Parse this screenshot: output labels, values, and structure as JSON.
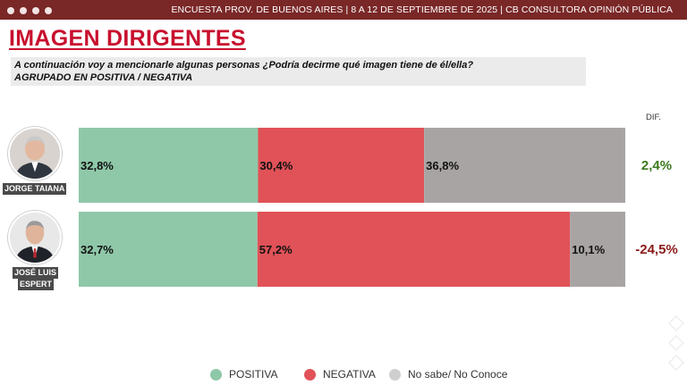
{
  "header": {
    "survey_title": "ENCUESTA PROV. DE BUENOS AIRES | 8 A 12 DE SEPTIEMBRE DE 2025 | CB CONSULTORA OPINIÓN PÚBLICA"
  },
  "title": "IMAGEN DIRIGENTES",
  "question": {
    "line1": "A continuación voy a mencionarle algunas personas  ¿Podría decirme qué imagen tiene de él/ella?",
    "line2": "AGRUPADO EN POSITIVA / NEGATIVA"
  },
  "dif_header": "DIF.",
  "colors": {
    "positiva": "#8fc8a8",
    "negativa": "#e05258",
    "nosabe": "#a9a4a4",
    "dif_positive": "#3c7a1f",
    "dif_negative": "#8b1a1a"
  },
  "chart_data": {
    "type": "bar",
    "orientation": "horizontal",
    "stacked": true,
    "categories": [
      "JORGE TAIANA",
      "JOSÉ LUIS ESPERT"
    ],
    "series": [
      {
        "name": "POSITIVA",
        "values": [
          32.8,
          32.7
        ],
        "labels": [
          "32,8%",
          "32,7%"
        ]
      },
      {
        "name": "NEGATIVA",
        "values": [
          30.4,
          57.2
        ],
        "labels": [
          "30,4%",
          "57,2%"
        ]
      },
      {
        "name": "No sabe/ No Conoce",
        "values": [
          36.8,
          10.1
        ],
        "labels": [
          "36,8%",
          "10,1%"
        ]
      }
    ],
    "dif": [
      {
        "value": 2.4,
        "label": "2,4%"
      },
      {
        "value": -24.5,
        "label": "-24,5%"
      }
    ],
    "xlim": [
      0,
      100
    ],
    "legend": [
      "POSITIVA",
      "NEGATIVA",
      "No sabe/ No Conoce"
    ],
    "legend_position": "bottom"
  },
  "people": [
    {
      "name": "JORGE TAIANA"
    },
    {
      "name_line1": "JOSÉ LUIS",
      "name_line2": "ESPERT"
    }
  ]
}
